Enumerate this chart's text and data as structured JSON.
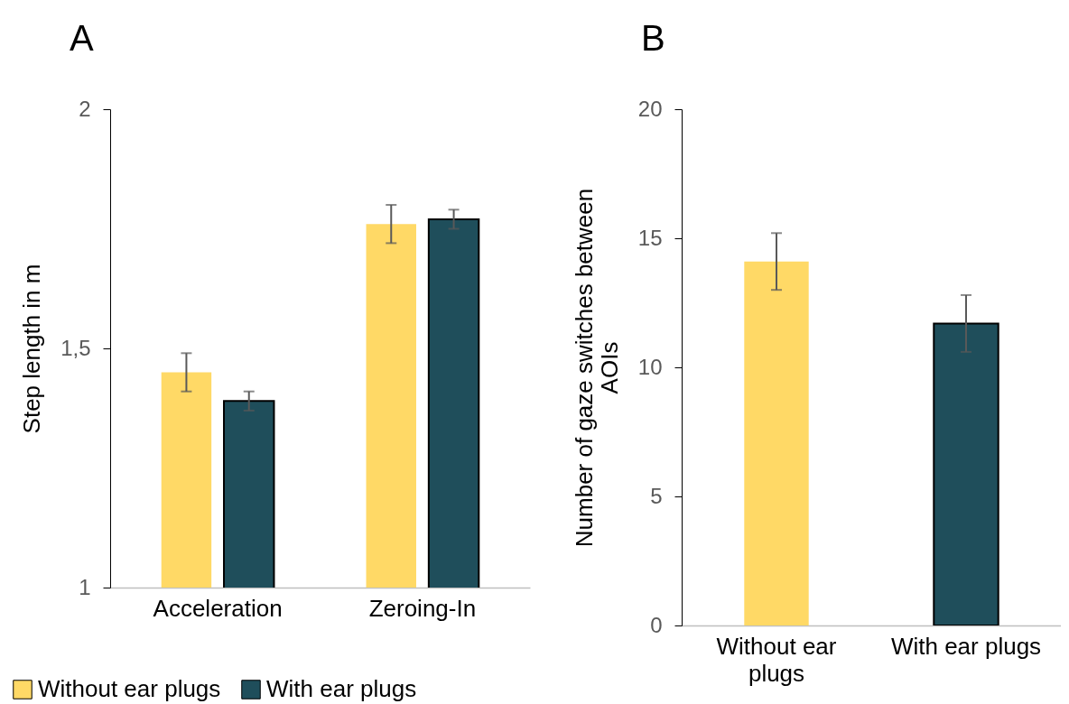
{
  "chart_data": [
    {
      "type": "bar",
      "title": "A",
      "ylabel": "Step length in m",
      "categories": [
        "Acceleration",
        "Zeroing-In"
      ],
      "series": [
        {
          "name": "Without ear plugs",
          "color": "#ffd966",
          "values": [
            1.45,
            1.76
          ],
          "errors": [
            0.04,
            0.04
          ]
        },
        {
          "name": "With ear plugs",
          "color": "#1f4e5b",
          "values": [
            1.39,
            1.77
          ],
          "errors": [
            0.02,
            0.02
          ]
        }
      ],
      "ylim": [
        1,
        2
      ],
      "yticks": [
        1,
        {
          "value": 1.5,
          "label": "1,5"
        },
        2
      ],
      "grid": false,
      "legend": "bottom left"
    },
    {
      "type": "bar",
      "title": "B",
      "ylabel": "Number of gaze switches between AOIs",
      "categories": [
        "Without ear plugs",
        "With ear plugs"
      ],
      "values": [
        14.1,
        11.7
      ],
      "colors": [
        "#ffd966",
        "#1f4e5b"
      ],
      "errors": [
        1.1,
        1.1
      ],
      "ylim": [
        0,
        20
      ],
      "yticks": [
        0,
        5,
        10,
        15,
        20
      ],
      "grid": false,
      "legend": false
    }
  ]
}
